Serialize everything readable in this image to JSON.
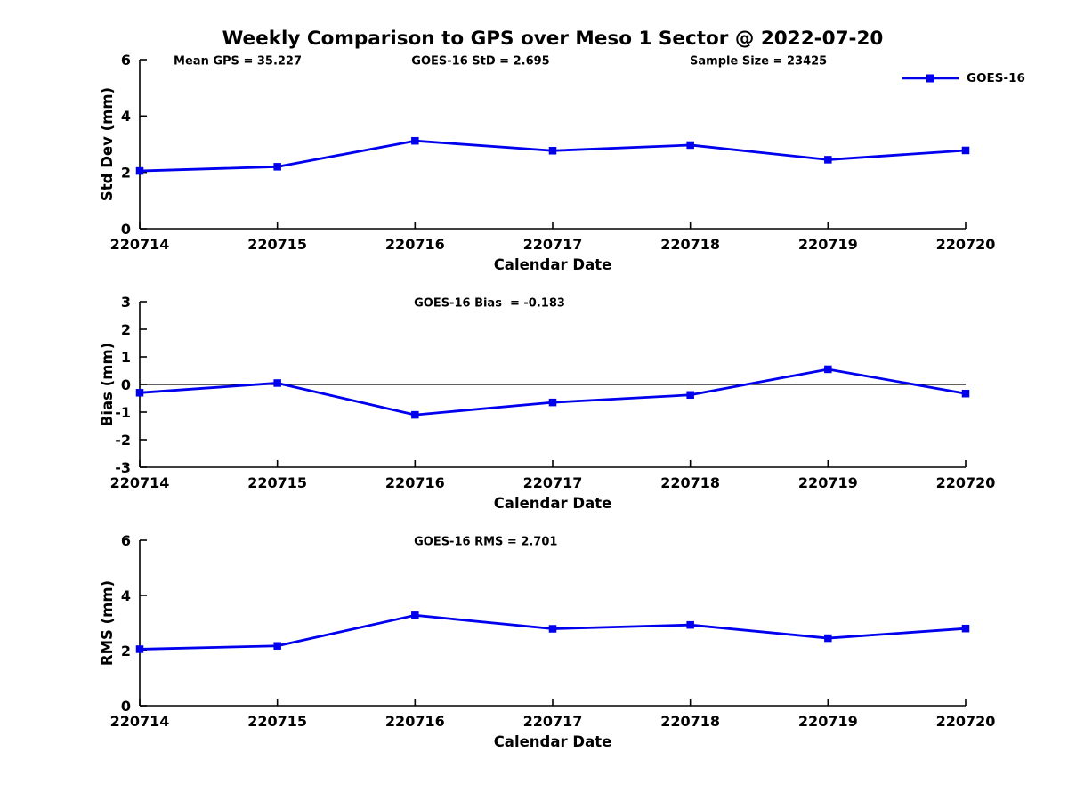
{
  "title": "Weekly Comparison to GPS over Meso 1 Sector @ 2022-07-20",
  "legend": {
    "label": "GOES-16"
  },
  "colors": {
    "series": "#0000EE",
    "axis": "#000000",
    "background": "#FFFFFF"
  },
  "chart_data": [
    {
      "type": "line",
      "name": "std-dev",
      "ylabel": "Std Dev (mm)",
      "xlabel": "Calendar Date",
      "categories": [
        "220714",
        "220715",
        "220716",
        "220717",
        "220718",
        "220719",
        "220720"
      ],
      "series": [
        {
          "name": "GOES-16",
          "marker": "square",
          "values": [
            2.05,
            2.2,
            3.12,
            2.77,
            2.97,
            2.45,
            2.78
          ]
        }
      ],
      "ylim": [
        0,
        6
      ],
      "yticks": [
        0,
        2,
        4,
        6
      ],
      "grid": false,
      "zero_line": false,
      "legend_position": "top-right-inside",
      "annotations": [
        {
          "text": "Mean GPS = 35.227",
          "xfrac": 0.041
        },
        {
          "text": "GOES-16 StD = 2.695",
          "xfrac": 0.329
        },
        {
          "text": "Sample Size = 23425",
          "xfrac": 0.666
        }
      ]
    },
    {
      "type": "line",
      "name": "bias",
      "ylabel": "Bias (mm)",
      "xlabel": "Calendar Date",
      "categories": [
        "220714",
        "220715",
        "220716",
        "220717",
        "220718",
        "220719",
        "220720"
      ],
      "series": [
        {
          "name": "GOES-16",
          "marker": "square",
          "values": [
            -0.3,
            0.05,
            -1.1,
            -0.65,
            -0.38,
            0.55,
            -0.33
          ]
        }
      ],
      "ylim": [
        -3,
        3
      ],
      "yticks": [
        -3,
        -2,
        -1,
        0,
        1,
        2,
        3
      ],
      "grid": false,
      "zero_line": true,
      "annotations": [
        {
          "text": "GOES-16 Bias  = -0.183",
          "xfrac": 0.332
        }
      ]
    },
    {
      "type": "line",
      "name": "rms",
      "ylabel": "RMS (mm)",
      "xlabel": "Calendar Date",
      "categories": [
        "220714",
        "220715",
        "220716",
        "220717",
        "220718",
        "220719",
        "220720"
      ],
      "series": [
        {
          "name": "GOES-16",
          "marker": "square",
          "values": [
            2.05,
            2.17,
            3.28,
            2.79,
            2.93,
            2.45,
            2.8
          ]
        }
      ],
      "ylim": [
        0,
        6
      ],
      "yticks": [
        0,
        2,
        4,
        6
      ],
      "grid": false,
      "zero_line": false,
      "annotations": [
        {
          "text": "GOES-16 RMS = 2.701",
          "xfrac": 0.332
        }
      ]
    }
  ]
}
